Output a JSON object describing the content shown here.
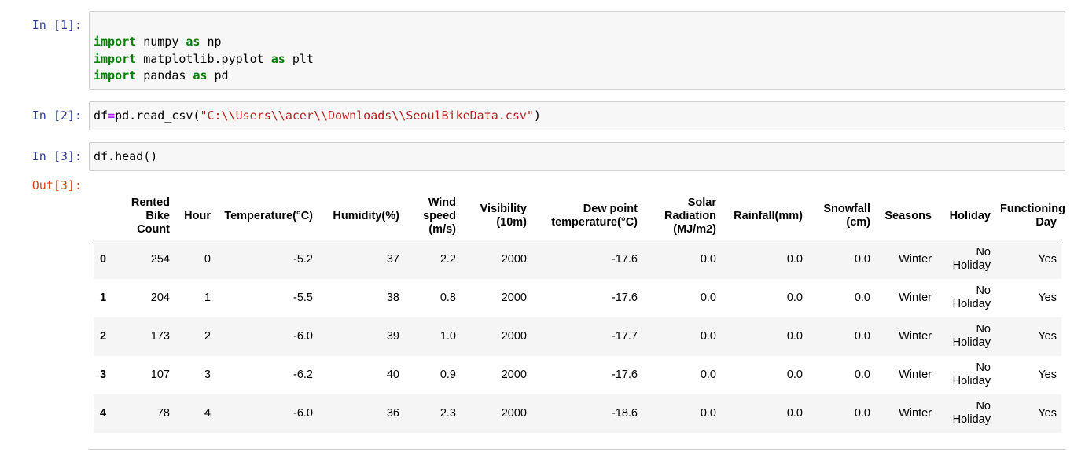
{
  "cells": [
    {
      "prompt": "In [1]:",
      "lines": [
        [
          {
            "t": "import",
            "c": "kw"
          },
          {
            "t": " numpy ",
            "c": ""
          },
          {
            "t": "as",
            "c": "kw"
          },
          {
            "t": " np",
            "c": ""
          }
        ],
        [
          {
            "t": "import",
            "c": "kw"
          },
          {
            "t": " matplotlib.pyplot ",
            "c": ""
          },
          {
            "t": "as",
            "c": "kw"
          },
          {
            "t": " plt",
            "c": ""
          }
        ],
        [
          {
            "t": "import",
            "c": "kw"
          },
          {
            "t": " pandas ",
            "c": ""
          },
          {
            "t": "as",
            "c": "kw"
          },
          {
            "t": " pd",
            "c": ""
          }
        ]
      ]
    },
    {
      "prompt": "In [2]:",
      "lines": [
        [
          {
            "t": "df",
            "c": ""
          },
          {
            "t": "=",
            "c": "op"
          },
          {
            "t": "pd.read_csv(",
            "c": ""
          },
          {
            "t": "\"C:\\\\Users\\\\acer\\\\Downloads\\\\SeoulBikeData.csv\"",
            "c": "str"
          },
          {
            "t": ")",
            "c": ""
          }
        ]
      ]
    },
    {
      "prompt": "In [3]:",
      "lines": [
        [
          {
            "t": "df.head()",
            "c": ""
          }
        ]
      ]
    }
  ],
  "output": {
    "prompt": "Out[3]:",
    "columns": [
      "Rented\nBike\nCount",
      "Hour",
      "Temperature(°C)",
      "Humidity(%)",
      "Wind\nspeed\n(m/s)",
      "Visibility\n(10m)",
      "Dew point\ntemperature(°C)",
      "Solar\nRadiation\n(MJ/m2)",
      "Rainfall(mm)",
      "Snowfall\n(cm)",
      "Seasons",
      "Holiday",
      "Functioning\nDay"
    ],
    "index": [
      "0",
      "1",
      "2",
      "3",
      "4"
    ],
    "rows": [
      [
        "254",
        "0",
        "-5.2",
        "37",
        "2.2",
        "2000",
        "-17.6",
        "0.0",
        "0.0",
        "0.0",
        "Winter",
        "No\nHoliday",
        "Yes"
      ],
      [
        "204",
        "1",
        "-5.5",
        "38",
        "0.8",
        "2000",
        "-17.6",
        "0.0",
        "0.0",
        "0.0",
        "Winter",
        "No\nHoliday",
        "Yes"
      ],
      [
        "173",
        "2",
        "-6.0",
        "39",
        "1.0",
        "2000",
        "-17.7",
        "0.0",
        "0.0",
        "0.0",
        "Winter",
        "No\nHoliday",
        "Yes"
      ],
      [
        "107",
        "3",
        "-6.2",
        "40",
        "0.9",
        "2000",
        "-17.6",
        "0.0",
        "0.0",
        "0.0",
        "Winter",
        "No\nHoliday",
        "Yes"
      ],
      [
        "78",
        "4",
        "-6.0",
        "36",
        "2.3",
        "2000",
        "-18.6",
        "0.0",
        "0.0",
        "0.0",
        "Winter",
        "No\nHoliday",
        "Yes"
      ]
    ]
  },
  "colors": {
    "in_prompt": "#303f9f",
    "out_prompt": "#d84315",
    "keyword": "#008000",
    "operator": "#aa22ff",
    "string": "#ba2121",
    "cell_bg": "#f7f7f7",
    "cell_border": "#cfcfcf"
  }
}
